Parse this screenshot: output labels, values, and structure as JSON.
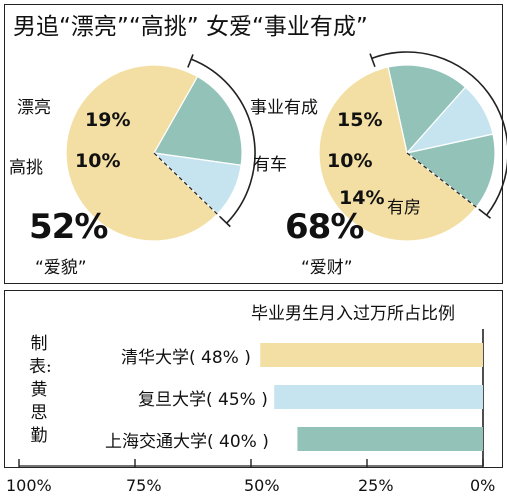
{
  "headline": "男追“漂亮”“高挑” 女爱“事业有成”",
  "colors": {
    "main": "#f3dfa4",
    "teal": "#93c3b8",
    "light": "#c6e4ef",
    "line": "#222222"
  },
  "chart_data": [
    {
      "type": "pie",
      "slices": [
        {
          "label": "漂亮",
          "value": 19,
          "display": "19%",
          "color": "#93c3b8"
        },
        {
          "label": "高挑",
          "value": 10,
          "display": "10%",
          "color": "#c6e4ef"
        },
        {
          "label": "",
          "value": 71,
          "color": "#f3dfa4"
        }
      ],
      "group_total": "52%",
      "group_label": "“爱貌”"
    },
    {
      "type": "pie",
      "slices": [
        {
          "label": "事业有成",
          "value": 15,
          "display": "15%",
          "color": "#93c3b8"
        },
        {
          "label": "有车",
          "value": 10,
          "display": "10%",
          "color": "#c6e4ef"
        },
        {
          "label": "有房",
          "value": 14,
          "display": "14%",
          "color": "#93c3b8"
        },
        {
          "label": "",
          "value": 61,
          "color": "#f3dfa4"
        }
      ],
      "group_total": "68%",
      "group_label": "“爱财”"
    },
    {
      "type": "bar",
      "orientation": "horizontal",
      "direction": "right-to-left",
      "title": "毕业男生月入过万所占比例",
      "categories": [
        "清华大学( 48% )",
        "复旦大学( 45% )",
        "上海交通大学( 40% )"
      ],
      "values": [
        48,
        45,
        40
      ],
      "colors": [
        "#f3dfa4",
        "#c6e4ef",
        "#93c3b8"
      ],
      "xlim": [
        100,
        0
      ],
      "ticks": [
        "100%",
        "75%",
        "50%",
        "25%",
        "0%"
      ]
    }
  ],
  "credit": "制表:黄思勤"
}
